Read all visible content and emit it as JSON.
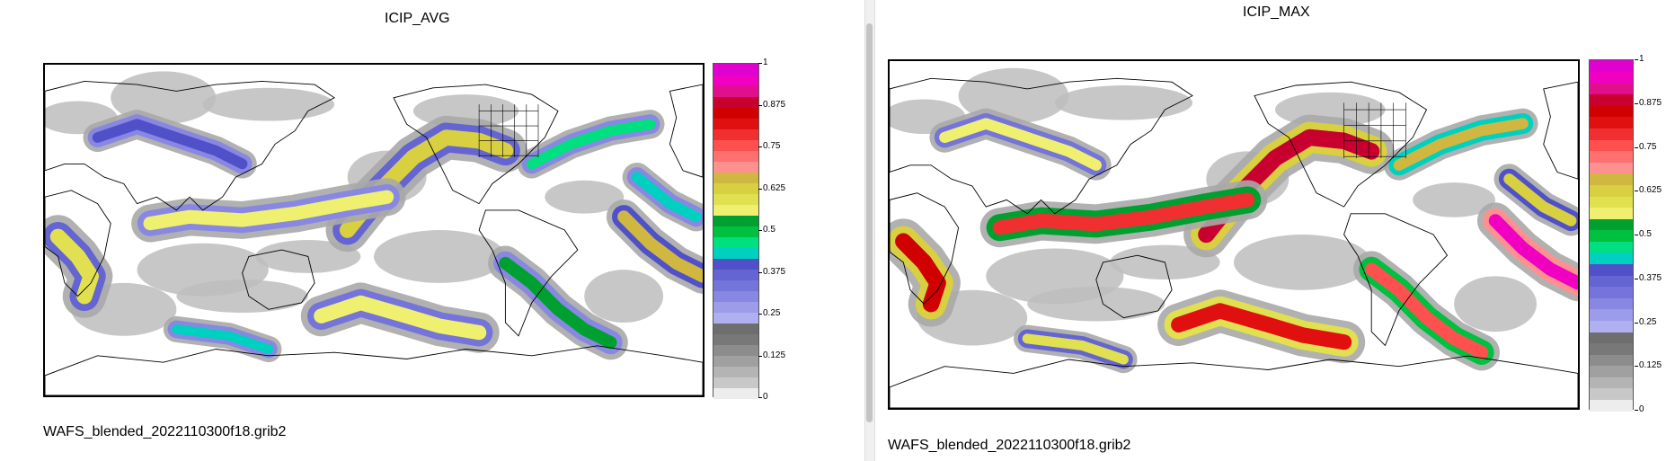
{
  "left_panel": {
    "title": "ICIP_AVG",
    "filename": "WAFS_blended_2022110300f18.grib2",
    "colorbar_ticks": [
      "1",
      "0.875",
      "0.75",
      "0.625",
      "0.5",
      "0.375",
      "0.25",
      "0.125",
      "0"
    ]
  },
  "right_panel": {
    "title": "ICIP_MAX",
    "filename": "WAFS_blended_2022110300f18.grib2",
    "colorbar_ticks": [
      "1",
      "0.875",
      "0.75",
      "0.625",
      "0.5",
      "0.375",
      "0.25",
      "0.125",
      "0"
    ]
  },
  "colorscale": [
    "#ededed",
    "#c8c8c8",
    "#b4b4b4",
    "#a0a0a0",
    "#8c8c8c",
    "#787878",
    "#6e6e6e",
    "#b0b0f0",
    "#9c9cea",
    "#8888e2",
    "#7474da",
    "#6464d2",
    "#5050c8",
    "#00d0c0",
    "#00e080",
    "#00c040",
    "#00a030",
    "#f0f070",
    "#e0e050",
    "#d8d040",
    "#d0b840",
    "#ff9090",
    "#ff7070",
    "#ff5050",
    "#f03030",
    "#e01010",
    "#d00000",
    "#c80030",
    "#e0108c",
    "#f000c0",
    "#e000d0"
  ],
  "colors": {
    "divider": "#f0f0f0",
    "scroll_thumb": "#c4c4c4"
  }
}
